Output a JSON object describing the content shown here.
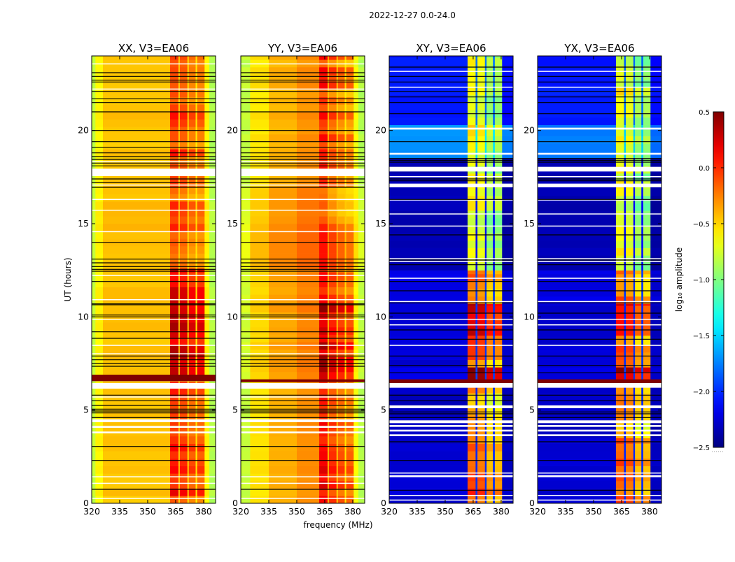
{
  "chart_data": {
    "type": "heatmap",
    "title": "2022-12-27 0.0-24.0",
    "xlabel": "frequency (MHz)",
    "ylabel": "UT (hours)",
    "xlim": [
      320,
      386.4
    ],
    "ylim": [
      0,
      24
    ],
    "xticks": [
      320,
      335,
      350,
      365,
      380
    ],
    "yticks": [
      0,
      5,
      10,
      15,
      20
    ],
    "colormap": "jet",
    "colorbar": {
      "label": "log₁₀ amplitude",
      "range": [
        -2.5,
        0.5
      ],
      "ticks": [
        0.5,
        0.0,
        -0.5,
        -1.0,
        -1.5,
        -2.0,
        -2.5
      ],
      "tick_labels": [
        "0.5",
        "0.0",
        "−0.5",
        "−1.0",
        "−1.5",
        "−2.0",
        "−2.5"
      ]
    },
    "flags": {
      "parallel": {
        "white": [
          [
            0.25,
            0.29
          ],
          [
            1.05,
            1.1
          ],
          [
            1.4,
            1.45
          ],
          [
            3.75,
            3.85
          ],
          [
            4.05,
            4.15
          ],
          [
            4.35,
            4.5
          ],
          [
            5.68,
            5.73
          ],
          [
            6.15,
            6.45
          ],
          [
            8.0,
            8.05
          ],
          [
            8.45,
            8.5
          ],
          [
            9.85,
            9.9
          ],
          [
            10.9,
            10.95
          ],
          [
            12.2,
            12.25
          ],
          [
            14.55,
            14.6
          ],
          [
            15.7,
            15.75
          ],
          [
            16.28,
            16.33
          ],
          [
            17.05,
            17.1
          ],
          [
            17.55,
            17.95
          ],
          [
            18.3,
            18.35
          ],
          [
            22.2,
            22.25
          ],
          [
            23.55,
            23.6
          ]
        ],
        "black": [
          0.75,
          2.3,
          3.05,
          4.6,
          4.85,
          4.95,
          5.05,
          5.25,
          5.5,
          5.8,
          7.35,
          7.5,
          7.7,
          7.9,
          8.85,
          9.2,
          10.0,
          10.1,
          10.65,
          10.7,
          11.9,
          12.45,
          12.55,
          12.7,
          12.9,
          13.1,
          14.0,
          16.95,
          17.2,
          17.4,
          18.1,
          18.25,
          18.45,
          18.6,
          18.8,
          19.1,
          19.4,
          20.0,
          21.0,
          21.5,
          21.7,
          22.1,
          22.6,
          22.7,
          22.9,
          23.1
        ]
      },
      "cross": {
        "white": [
          [
            0.15,
            0.2
          ],
          [
            0.4,
            0.45
          ],
          [
            1.4,
            1.5
          ],
          [
            1.6,
            1.65
          ],
          [
            3.6,
            3.7
          ],
          [
            3.85,
            3.95
          ],
          [
            4.1,
            4.2
          ],
          [
            4.3,
            4.45
          ],
          [
            5.1,
            5.25
          ],
          [
            6.2,
            6.45
          ],
          [
            8.45,
            8.5
          ],
          [
            9.55,
            9.6
          ],
          [
            9.85,
            9.9
          ],
          [
            10.8,
            10.85
          ],
          [
            12.05,
            12.1
          ],
          [
            12.95,
            13.0
          ],
          [
            13.1,
            13.15
          ],
          [
            14.85,
            14.9
          ],
          [
            15.5,
            15.55
          ],
          [
            16.25,
            16.3
          ],
          [
            16.95,
            17.15
          ],
          [
            17.5,
            17.55
          ],
          [
            17.8,
            18.05
          ],
          [
            18.7,
            18.8
          ],
          [
            20.05,
            20.15
          ],
          [
            22.3,
            22.35
          ],
          [
            23.15,
            23.2
          ]
        ],
        "black": [
          0.7,
          2.3,
          3.3,
          4.6,
          4.8,
          4.9,
          5.5,
          5.8,
          7.0,
          7.4,
          7.9,
          8.8,
          9.3,
          10.2,
          10.75,
          11.4,
          11.9,
          12.8,
          13.05,
          14.4,
          16.3,
          17.3,
          17.4,
          18.3,
          18.4,
          18.5,
          19.4,
          20.9,
          21.5,
          21.8,
          22.1,
          22.6,
          22.9,
          23.4
        ]
      }
    },
    "panels": [
      {
        "title": "XX, V3=EA06",
        "flag_set": "parallel",
        "saturated": [
          [
            6.55,
            6.9
          ]
        ],
        "freq_profile": [
          {
            "f": [
              320,
              322
            ],
            "v": -0.8,
            "band": false
          },
          {
            "f": [
              322,
              326
            ],
            "v": -0.6,
            "band": false
          },
          {
            "f": [
              326,
              362
            ],
            "v": -0.45,
            "band": false
          },
          {
            "f": [
              362,
              366.5
            ],
            "v": -0.1,
            "band": true
          },
          {
            "f": [
              366.5,
              367.2
            ],
            "v": -0.5,
            "band": false
          },
          {
            "f": [
              367.2,
              371.3
            ],
            "v": -0.15,
            "band": true
          },
          {
            "f": [
              371.3,
              372
            ],
            "v": -0.55,
            "band": false
          },
          {
            "f": [
              372,
              375.7
            ],
            "v": -0.25,
            "band": true
          },
          {
            "f": [
              375.7,
              376.5
            ],
            "v": -0.55,
            "band": false
          },
          {
            "f": [
              376.5,
              380.5
            ],
            "v": -0.25,
            "band": true
          },
          {
            "f": [
              380.5,
              383
            ],
            "v": -0.6,
            "band": false
          },
          {
            "f": [
              383,
              386.4
            ],
            "v": -0.85,
            "band": false
          }
        ],
        "time_segments": [
          {
            "t": [
              0,
              3.2
            ],
            "band": 0.15,
            "bg": 0
          },
          {
            "t": [
              3.2,
              4.9
            ],
            "band": 0.0,
            "bg": 0
          },
          {
            "t": [
              4.9,
              6.55
            ],
            "band": 0.1,
            "bg": 0
          },
          {
            "t": [
              6.9,
              10.8
            ],
            "band": 0.35,
            "bg": 0
          },
          {
            "t": [
              10.8,
              12.6
            ],
            "band": 0.25,
            "bg": 0
          },
          {
            "t": [
              12.6,
              17
            ],
            "band": 0.0,
            "bg": 0.02
          },
          {
            "t": [
              17,
              24
            ],
            "band": 0.05,
            "bg": 0
          }
        ]
      },
      {
        "title": "YY, V3=EA06",
        "flag_set": "parallel",
        "saturated": [
          [
            6.5,
            6.65
          ]
        ],
        "freq_profile": [
          {
            "f": [
              320,
              325
            ],
            "v": -0.8,
            "band": false
          },
          {
            "f": [
              325,
              335
            ],
            "v": -0.55,
            "band": false
          },
          {
            "f": [
              335,
              350
            ],
            "v": -0.4,
            "band": false
          },
          {
            "f": [
              350,
              362
            ],
            "v": -0.3,
            "band": false
          },
          {
            "f": [
              362,
              366.5
            ],
            "v": 0.0,
            "band": true
          },
          {
            "f": [
              366.5,
              367.2
            ],
            "v": -0.45,
            "band": false
          },
          {
            "f": [
              367.2,
              371.3
            ],
            "v": -0.15,
            "band": true
          },
          {
            "f": [
              371.3,
              372
            ],
            "v": -0.5,
            "band": false
          },
          {
            "f": [
              372,
              375.7
            ],
            "v": -0.25,
            "band": true
          },
          {
            "f": [
              375.7,
              376.5
            ],
            "v": -0.55,
            "band": false
          },
          {
            "f": [
              376.5,
              380.5
            ],
            "v": -0.3,
            "band": true
          },
          {
            "f": [
              380.5,
              383
            ],
            "v": -0.65,
            "band": false
          },
          {
            "f": [
              383,
              386.4
            ],
            "v": -0.85,
            "band": false
          }
        ],
        "time_segments": [
          {
            "t": [
              0,
              3.2
            ],
            "band": 0.1,
            "bg": 0
          },
          {
            "t": [
              3.2,
              4.9
            ],
            "band": 0.0,
            "bg": 0
          },
          {
            "t": [
              4.9,
              6.5
            ],
            "band": 0.05,
            "bg": 0
          },
          {
            "t": [
              6.65,
              10.8
            ],
            "band": 0.3,
            "bg": 0.05
          },
          {
            "t": [
              10.8,
              12.6
            ],
            "band": 0.1,
            "bg": 0.05
          },
          {
            "t": [
              12.6,
              17
            ],
            "band": -0.05,
            "bg": 0.1
          },
          {
            "t": [
              17,
              24
            ],
            "band": 0.0,
            "bg": 0
          }
        ]
      },
      {
        "title": "XY, V3=EA06",
        "flag_set": "cross",
        "saturated": [
          [
            6.45,
            6.65
          ]
        ],
        "freq_profile": [
          {
            "f": [
              320,
              362
            ],
            "v": -2.35,
            "band": false
          },
          {
            "f": [
              362,
              366.3
            ],
            "v": -0.7,
            "band": true
          },
          {
            "f": [
              366.3,
              367.3
            ],
            "v": -2.1,
            "band": false
          },
          {
            "f": [
              367.3,
              371.3
            ],
            "v": -0.75,
            "band": true
          },
          {
            "f": [
              371.3,
              372.2
            ],
            "v": -2.1,
            "band": false
          },
          {
            "f": [
              372.2,
              375.6
            ],
            "v": -0.95,
            "band": true
          },
          {
            "f": [
              375.6,
              376.6
            ],
            "v": -2.1,
            "band": false
          },
          {
            "f": [
              376.6,
              380.5
            ],
            "v": -0.95,
            "band": true
          },
          {
            "f": [
              380.5,
              386.4
            ],
            "v": -2.4,
            "band": false
          }
        ],
        "time_segments": [
          {
            "t": [
              0,
              3.5
            ],
            "band": 0.6,
            "bg": 0.1
          },
          {
            "t": [
              3.5,
              6.45
            ],
            "band": 0.35,
            "bg": 0.05
          },
          {
            "t": [
              6.65,
              7.3
            ],
            "band": 1.1,
            "bg": 0.15
          },
          {
            "t": [
              7.3,
              9.0
            ],
            "band": 0.55,
            "bg": 0.1
          },
          {
            "t": [
              9.0,
              10.7
            ],
            "band": 0.95,
            "bg": 0.1
          },
          {
            "t": [
              10.7,
              12.5
            ],
            "band": 0.5,
            "bg": 0.15
          },
          {
            "t": [
              12.5,
              18.5
            ],
            "band": 0.0,
            "bg": 0
          },
          {
            "t": [
              18.5,
              20.3
            ],
            "band": 0.1,
            "bg": 0.65
          },
          {
            "t": [
              20.3,
              24
            ],
            "band": 0.05,
            "bg": 0.3
          }
        ]
      },
      {
        "title": "YX, V3=EA06",
        "flag_set": "cross",
        "saturated": [
          [
            6.45,
            6.65
          ]
        ],
        "freq_profile": [
          {
            "f": [
              320,
              362
            ],
            "v": -2.35,
            "band": false
          },
          {
            "f": [
              362,
              366.3
            ],
            "v": -0.7,
            "band": true
          },
          {
            "f": [
              366.3,
              367.3
            ],
            "v": -2.1,
            "band": false
          },
          {
            "f": [
              367.3,
              371.3
            ],
            "v": -0.75,
            "band": true
          },
          {
            "f": [
              371.3,
              372.2
            ],
            "v": -2.1,
            "band": false
          },
          {
            "f": [
              372.2,
              375.6
            ],
            "v": -0.95,
            "band": true
          },
          {
            "f": [
              375.6,
              376.6
            ],
            "v": -2.1,
            "band": false
          },
          {
            "f": [
              376.6,
              380.5
            ],
            "v": -0.95,
            "band": true
          },
          {
            "f": [
              380.5,
              386.4
            ],
            "v": -2.4,
            "band": false
          }
        ],
        "time_segments": [
          {
            "t": [
              0,
              3.5
            ],
            "band": 0.6,
            "bg": 0.1
          },
          {
            "t": [
              3.5,
              6.45
            ],
            "band": 0.35,
            "bg": 0.05
          },
          {
            "t": [
              6.65,
              7.3
            ],
            "band": 1.1,
            "bg": 0.15
          },
          {
            "t": [
              7.3,
              9.0
            ],
            "band": 0.55,
            "bg": 0.1
          },
          {
            "t": [
              9.0,
              10.7
            ],
            "band": 0.95,
            "bg": 0.1
          },
          {
            "t": [
              10.7,
              12.5
            ],
            "band": 0.5,
            "bg": 0.15
          },
          {
            "t": [
              12.5,
              18.5
            ],
            "band": 0.0,
            "bg": 0
          },
          {
            "t": [
              18.5,
              20.3
            ],
            "band": 0.1,
            "bg": 0.6
          },
          {
            "t": [
              20.3,
              24
            ],
            "band": 0.05,
            "bg": 0.3
          }
        ]
      }
    ]
  }
}
